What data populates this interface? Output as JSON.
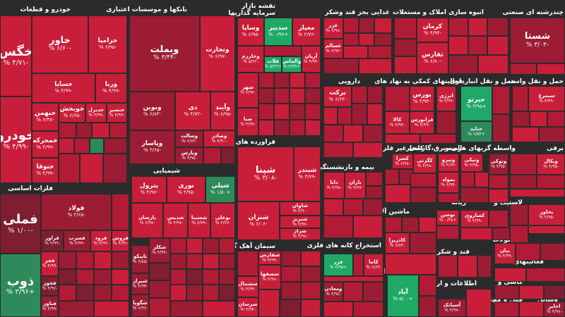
{
  "sectors": [
    {
      "id": "s-khodro",
      "label": "خودرو و قطعات"
    },
    {
      "id": "s-banks",
      "label": "بانکها و موسسات اعتباری"
    },
    {
      "id": "s-investment",
      "label": "سرمایه گذاریها"
    },
    {
      "id": "s-market-map",
      "label": "نقشه بازار"
    },
    {
      "id": "s-food",
      "label": "غذایی بجز قند وشکر"
    },
    {
      "id": "s-construction",
      "label": "انبوه سازی املاک و مستغلات"
    },
    {
      "id": "s-industrial-multi",
      "label": "چندرشته ای صنعتی"
    },
    {
      "id": "s-pharma",
      "label": "دارویی"
    },
    {
      "id": "s-financial-aux",
      "label": "فعالیتهای کمکی به نهاد های"
    },
    {
      "id": "s-transport",
      "label": "حمل و نقل انبارداری"
    },
    {
      "id": "s-communication",
      "label": "حمل و نقل واسته"
    },
    {
      "id": "s-basic-metals",
      "label": "فلزات اساسی"
    },
    {
      "id": "s-chemical",
      "label": "شیمیایی"
    },
    {
      "id": "s-oil",
      "label": "فراورده های نفتی"
    },
    {
      "id": "s-insurance",
      "label": "بیمه و بازنشستگی"
    },
    {
      "id": "s-nonmetal-mineral",
      "label": "کانی غیر فلزی"
    },
    {
      "id": "s-retail",
      "label": "عرضه برق،گاز،بخار"
    },
    {
      "id": "s-financial-intermediation",
      "label": "واسطه گریهای مالی و"
    },
    {
      "id": "s-fuel",
      "label": "ریانه"
    },
    {
      "id": "s-plastic",
      "label": "لاستیک و"
    },
    {
      "id": "s-machinery",
      "label": "ماشین آلات و"
    },
    {
      "id": "s-coal",
      "label": "استخراج کانه های فلزی"
    },
    {
      "id": "s-cement",
      "label": "سیمان آهک گچ"
    },
    {
      "id": "s-sugar",
      "label": "قند و شکر"
    },
    {
      "id": "s-hotel",
      "label": "هتل و رستوران"
    },
    {
      "id": "s-telecom",
      "label": "اطلاعات و ارتباطات"
    },
    {
      "id": "s-products",
      "label": "محصولات"
    },
    {
      "id": "s-activities",
      "label": "فعالیتهای"
    },
    {
      "id": "s-agri",
      "label": "کاشی و"
    },
    {
      "id": "s-tech",
      "label": "فنی و مهندسی"
    },
    {
      "id": "s-tools",
      "label": "وسایل"
    },
    {
      "id": "s-electric",
      "label": "برقی"
    }
  ],
  "tiles": [
    {
      "id": "khodro",
      "sym": "خودرو",
      "pct": "-۴/۹۹ %"
    },
    {
      "id": "khegostar",
      "sym": "خگس",
      "pct": "-۴/۷۱ %"
    },
    {
      "id": "khavar",
      "sym": "خاور",
      "pct": "-۶/۶۰ %"
    },
    {
      "id": "khazamia",
      "sym": "خزامیا",
      "pct": "-۶/۹۵ %"
    },
    {
      "id": "khesapa",
      "sym": "خساپا",
      "pct": "-۴/۹۹ %"
    },
    {
      "id": "khevana",
      "sym": "ورنا",
      "pct": "-۴/۹۹ %"
    },
    {
      "id": "khebahman",
      "sym": "خبهمن",
      "pct": "-۶/۴۸ %"
    },
    {
      "id": "khamehvar",
      "sym": "خمحرکه",
      "pct": "-۴/۹۹ %"
    },
    {
      "id": "khotila",
      "sym": "ختوقا",
      "pct": "-۴/۹۹ %"
    },
    {
      "id": "khoikh",
      "sym": "خویخش",
      "pct": "-۶/۶۵ %"
    },
    {
      "id": "khedizel",
      "sym": "خدیزل",
      "pct": "-۴/۹۹ %"
    },
    {
      "id": "khensar",
      "sym": "خنصیر",
      "pct": "-۴/۹۹ %"
    },
    {
      "id": "vebmelat",
      "sym": "وبملت",
      "pct": "-۳/۴۴ %"
    },
    {
      "id": "vetejarat",
      "sym": "وتجارت",
      "pct": "-۶/۹۷ %"
    },
    {
      "id": "vnovin",
      "sym": "ونوین",
      "pct": "-۶/۸۳ %"
    },
    {
      "id": "di",
      "sym": "دی",
      "pct": "-۴/۷۲ %"
    },
    {
      "id": "vesalat",
      "sym": "وسالت",
      "pct": "-۴/۷۲ %"
    },
    {
      "id": "vepasar",
      "sym": "وپاسار",
      "pct": "-۳/۶۵ %"
    },
    {
      "id": "vesedar",
      "sym": "وصادر",
      "pct": "-۴/۹۰ %"
    },
    {
      "id": "vaparis",
      "sym": "وپارس",
      "pct": "-۴/۹۵ %"
    },
    {
      "id": "vaied",
      "sym": "وآیند",
      "pct": "-۶/۹۵ %"
    },
    {
      "id": "vesapa",
      "sym": "وساپا",
      "pct": "-۶/۹۵ %"
    },
    {
      "id": "vedibir",
      "sym": "سدبیر",
      "pct": "+۰/۹۷ %"
    },
    {
      "id": "meiar",
      "sym": "معیار",
      "pct": "-۲/۷۶ %"
    },
    {
      "id": "vekhazar",
      "sym": "وخارزم",
      "pct": "-۵/۲۲ %"
    },
    {
      "id": "felat",
      "sym": "فلات",
      "pct": "+۵/۲۹ %"
    },
    {
      "id": "valmas",
      "sym": "والماس",
      "pct": "+۴/۹۹ %"
    },
    {
      "id": "arian",
      "sym": "آریان",
      "pct": "-۴/۹۴ %"
    },
    {
      "id": "shahr",
      "sym": "شهر",
      "pct": "-۴/۹۴ %"
    },
    {
      "id": "saba",
      "sym": "صبا",
      "pct": "-۴/۹۹ %"
    },
    {
      "id": "ghazar",
      "sym": "غزر",
      "pct": "-۶/۹۸ %"
    },
    {
      "id": "ghasalis",
      "sym": "غسالم",
      "pct": "-۶/۹۴ %"
    },
    {
      "id": "kerman",
      "sym": "کرمان",
      "pct": "-۴/۹۴ %"
    },
    {
      "id": "thafars",
      "sym": "ثفارس",
      "pct": "-۶/۸۰ %"
    },
    {
      "id": "shasta",
      "sym": "شستا",
      "pct": "-۳/۰۳ %"
    },
    {
      "id": "barkat",
      "sym": "برکت",
      "pct": "-۶/۶۲ %"
    },
    {
      "id": "borus",
      "sym": "بورس",
      "pct": "-۴/۹۴ %"
    },
    {
      "id": "farabors",
      "sym": "فرابورس",
      "pct": "-۴/۹۹ %"
    },
    {
      "id": "kala",
      "sym": "کالا",
      "pct": "-۴/۹۴ %"
    },
    {
      "id": "anergi",
      "sym": "انرژی",
      "pct": "-۴/۹۹ %"
    },
    {
      "id": "hiron",
      "sym": "حیرتو",
      "pct": "+۴/۹۵ %"
    },
    {
      "id": "hetaid",
      "sym": "حتاید",
      "pct": "+۲/۵۴ %"
    },
    {
      "id": "simorgh",
      "sym": "سیمرغ",
      "pct": "-۴/۹۹ %"
    },
    {
      "id": "fameli",
      "sym": "فملی",
      "pct": "-۱/۰۰ %"
    },
    {
      "id": "fooolad",
      "sym": "فولاد",
      "pct": "-۲/۶۵ %"
    },
    {
      "id": "faravar",
      "sym": "فراور",
      "pct": "-۴/۹۹ %"
    },
    {
      "id": "femasoud",
      "sym": "فسرب",
      "pct": "-۴/۹۹ %"
    },
    {
      "id": "ferod",
      "sym": "فرود",
      "pct": "-۴/۹۹ %"
    },
    {
      "id": "feros",
      "sym": "فروس",
      "pct": "-۴/۹۹ %"
    },
    {
      "id": "fejer",
      "sym": "فجر",
      "pct": "-۴/۹۹ %"
    },
    {
      "id": "zob",
      "sym": "ذوب",
      "pct": "+۳/۹۶ %"
    },
    {
      "id": "fekhouz",
      "sym": "فخوز",
      "pct": "-۴/۹۶ %"
    },
    {
      "id": "fenaver",
      "sym": "فناور",
      "pct": "-۴/۹۹ %"
    },
    {
      "id": "pterol",
      "sym": "پترول",
      "pct": "-۴/۹۷ %"
    },
    {
      "id": "noori",
      "sym": "نوری",
      "pct": "-۳/۹۵ %"
    },
    {
      "id": "shepli",
      "sym": "شپلی",
      "pct": "+۱/۵۰ %"
    },
    {
      "id": "parsan",
      "sym": "پارسان",
      "pct": "-۶/۹۷ %"
    },
    {
      "id": "shedis",
      "sym": "شدیس",
      "pct": "-۴/۹۷ %"
    },
    {
      "id": "shesina",
      "sym": "شسینا",
      "pct": "-۶/۷۹ %"
    },
    {
      "id": "boali",
      "sym": "بوعلی",
      "pct": "-۴/۷۷ %"
    },
    {
      "id": "shekalra",
      "sym": "شکلر",
      "pct": "-۴/۹۹ %"
    },
    {
      "id": "tapico",
      "sym": "تاپیکو",
      "pct": "-۶/۸۵ %"
    },
    {
      "id": "shiraz",
      "sym": "شیراز",
      "pct": "-۴/۹۴ %"
    },
    {
      "id": "shegooya",
      "sym": "شگویا",
      "pct": "-۶/۹۶ %"
    },
    {
      "id": "shepna",
      "sym": "شپنا",
      "pct": "-۳/۰۸ %"
    },
    {
      "id": "shebandar",
      "sym": "شبندر",
      "pct": "-۳/۷۹ %"
    },
    {
      "id": "sheteran",
      "sym": "شتران",
      "pct": "-۶/۰۶ %"
    },
    {
      "id": "shavan",
      "sym": "شاوان",
      "pct": "-۳/۹۰ %"
    },
    {
      "id": "shebriz",
      "sym": "شبریز",
      "pct": "-۴/۹۷ %"
    },
    {
      "id": "sheraz2",
      "sym": "شراز",
      "pct": "-۴/۹۸ %"
    },
    {
      "id": "sefars",
      "sym": "سفارس",
      "pct": "-۴/۹۹ %"
    },
    {
      "id": "sesahaa",
      "sym": "سصفها",
      "pct": "-۴/۹۸ %"
    },
    {
      "id": "seshomal",
      "sym": "سشمال",
      "pct": "-۴/۹۹ %"
    },
    {
      "id": "sersan",
      "sym": "سرسان",
      "pct": "-۴/۹۴ %"
    },
    {
      "id": "dana",
      "sym": "دانا",
      "pct": "-۴/۹۸ %"
    },
    {
      "id": "baran",
      "sym": "باران",
      "pct": "-۴/۷۷ %"
    },
    {
      "id": "kesra",
      "sym": "کسرا",
      "pct": "-۶/۹۸ %"
    },
    {
      "id": "kegrati",
      "sym": "کگرتی",
      "pct": "-۴/۹۸ %"
    },
    {
      "id": "voniro",
      "sym": "ونیرو",
      "pct": "-۴/۶۳ %"
    },
    {
      "id": "bemolad",
      "sym": "بمولد",
      "pct": "-۶/۹۴ %"
    },
    {
      "id": "vanikad",
      "sym": "ونیکی",
      "pct": "-۴/۹۵ %"
    },
    {
      "id": "vetouki",
      "sym": "وتوکی",
      "pct": "-۴/۹۵ %"
    },
    {
      "id": "vebekal",
      "sym": "وبکال",
      "pct": "-۴/۹۵ %"
    },
    {
      "id": "vesamen",
      "sym": "وسامن",
      "pct": "-۴/۹۹ %"
    },
    {
      "id": "tosan",
      "sym": "توسن",
      "pct": "+۰/۴۸ %"
    },
    {
      "id": "kadriza",
      "sym": "کادریزا",
      "pct": "-۶/۷۳ %"
    },
    {
      "id": "fezer",
      "sym": "فزر",
      "pct": "+۴/۹۵ %"
    },
    {
      "id": "kama",
      "sym": "کاما",
      "pct": "-۶/۶۹ %"
    },
    {
      "id": "vemadan",
      "sym": "ومعادن",
      "pct": "-۴/۹۸ %"
    },
    {
      "id": "abad",
      "sym": "آباد",
      "pct": "+۵/۰۰ %"
    },
    {
      "id": "akhaber",
      "sym": "اخابر",
      "pct": "-۴/۹۸ %"
    },
    {
      "id": "asiatek",
      "sym": "آسیاتک",
      "pct": "-۴/۹۷ %"
    },
    {
      "id": "nian",
      "sym": "نیان",
      "pct": "-۴/۹۹ %"
    },
    {
      "id": "kesaravi",
      "sym": "کساروی",
      "pct": "-۴/۹۹ %"
    },
    {
      "id": "bekhaver",
      "sym": "بخاور",
      "pct": "-۴/۹۵ %"
    }
  ]
}
